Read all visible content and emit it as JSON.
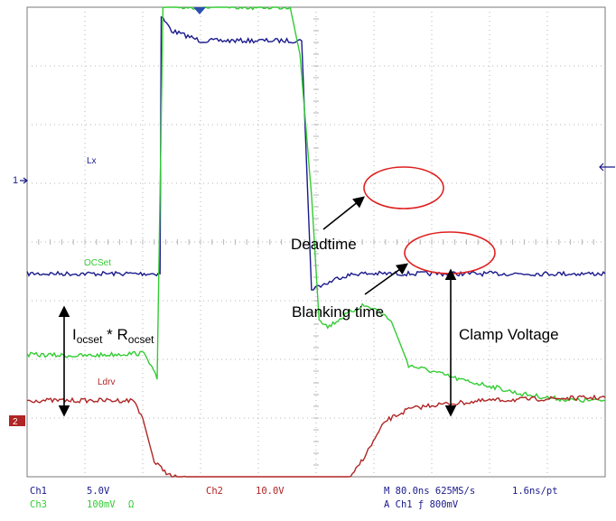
{
  "chart_data": {
    "type": "line",
    "title": "",
    "xlabel": "",
    "ylabel": "",
    "grid": true,
    "x_divisions": 10,
    "y_divisions": 8,
    "xlim": [
      0,
      10
    ],
    "ylim": [
      0,
      8
    ],
    "series": [
      {
        "name": "Lx",
        "color": "#1a1a8c",
        "x": [
          0,
          1.5,
          1.75,
          2.3,
          2.32,
          2.5,
          3.0,
          3.6,
          4.3,
          4.75,
          4.92,
          5.05,
          5.2,
          5.4,
          5.7,
          6.0,
          7.0,
          8.0,
          9.0,
          10.0
        ],
        "y": [
          3.46,
          3.46,
          3.46,
          3.46,
          7.85,
          7.6,
          7.43,
          7.43,
          7.43,
          7.43,
          3.2,
          3.25,
          3.3,
          3.4,
          3.46,
          3.46,
          3.46,
          3.46,
          3.46,
          3.46
        ]
      },
      {
        "name": "OCSet",
        "color": "#33cc33",
        "x": [
          0,
          1.0,
          1.8,
          2.05,
          2.25,
          2.35,
          4.4,
          4.55,
          4.72,
          4.92,
          5.05,
          5.2,
          5.5,
          5.8,
          6.05,
          6.3,
          6.6,
          7.0,
          7.5,
          8.0,
          8.5,
          9.0,
          9.5,
          10.0
        ],
        "y": [
          2.08,
          2.06,
          2.1,
          2.1,
          1.66,
          8.0,
          8.0,
          8.0,
          7.2,
          4.8,
          2.7,
          2.55,
          2.75,
          2.92,
          2.85,
          2.65,
          1.9,
          1.8,
          1.65,
          1.55,
          1.42,
          1.35,
          1.3,
          1.3
        ]
      },
      {
        "name": "Ldrv",
        "color": "#b02525",
        "x": [
          0,
          1.0,
          1.85,
          2.0,
          2.2,
          2.5,
          3.0,
          4.0,
          5.0,
          5.6,
          5.9,
          6.2,
          6.6,
          7.0,
          8.0,
          9.0,
          10.0
        ],
        "y": [
          1.3,
          1.3,
          1.3,
          1.0,
          0.25,
          0.0,
          -0.06,
          -0.06,
          -0.12,
          -0.02,
          0.45,
          0.95,
          1.15,
          1.22,
          1.3,
          1.33,
          1.35
        ]
      }
    ],
    "trace_labels": [
      "Lx",
      "OCSet",
      "Ldrv"
    ],
    "markers": {
      "ch1": "1",
      "ch2": "2"
    },
    "annotations": [
      "Deadtime",
      "Blanking time",
      "Clamp Voltage"
    ],
    "formula": {
      "a": "I",
      "a_sub": "ocset",
      "op": "*",
      "b": "R",
      "b_sub": "ocset"
    },
    "colors": {
      "grid": "#b4b4b4",
      "ellipse": "#e02020",
      "arrow": "#000000"
    }
  },
  "status": {
    "ch1": "Ch1",
    "ch1_scale": "5.0V",
    "ch3": "Ch3",
    "ch3_scale": "100mV",
    "ch3_coupling": "Ω",
    "ch2": "Ch2",
    "ch2_scale": "10.0V",
    "timebase": "M 80.0ns 625MS/s",
    "resolution": "1.6ns/pt",
    "trigger": "A  Ch1  ƒ  800mV"
  }
}
